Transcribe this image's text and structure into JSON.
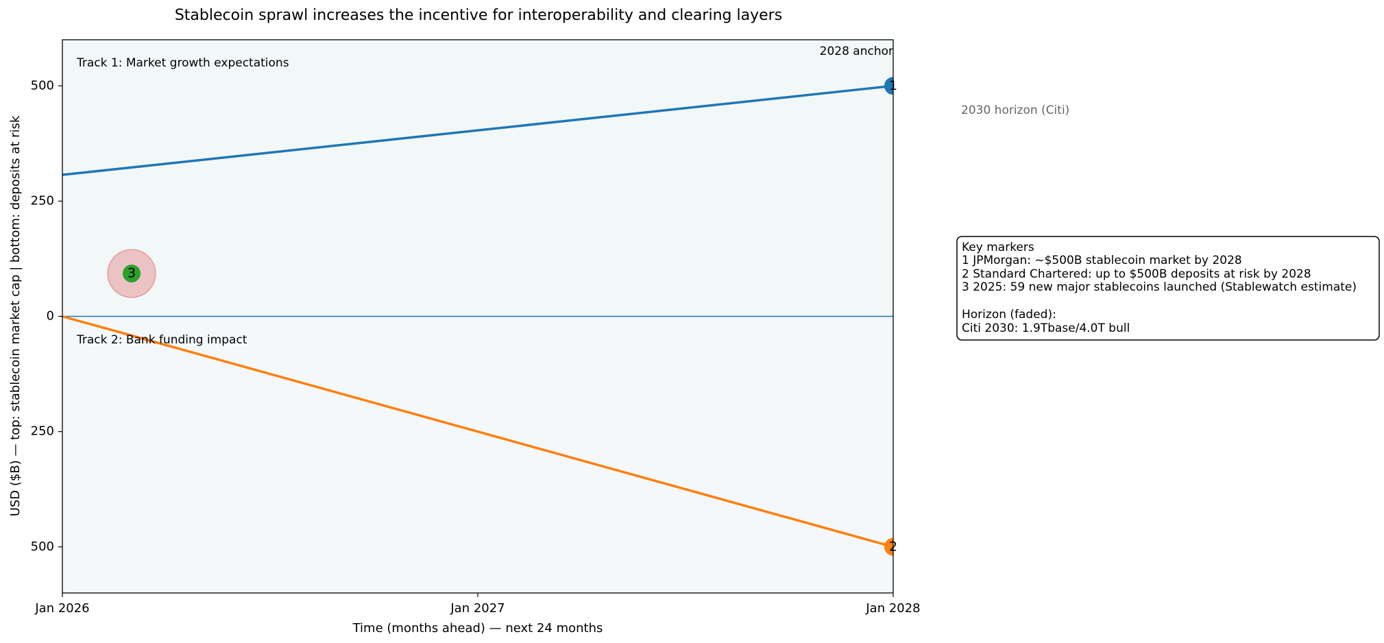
{
  "chart_data": {
    "type": "line",
    "title": "Stablecoin sprawl increases the incentive for interoperability and clearing layers",
    "x_label": "Time (months ahead) — next 24 months",
    "y_label": "USD ($B) — top: stablecoin market cap | bottom: deposits at risk",
    "xlim": [
      0,
      24
    ],
    "xticks": [
      {
        "value": 0,
        "label": "Jan 2026"
      },
      {
        "value": 12,
        "label": "Jan 2027"
      },
      {
        "value": 24,
        "label": "Jan 2028"
      }
    ],
    "ylim": [
      -600,
      600
    ],
    "yticks": [
      {
        "value": -500,
        "label": "500"
      },
      {
        "value": -250,
        "label": "250"
      },
      0,
      250,
      500
    ],
    "hline": 0,
    "series": [
      {
        "color": "#1f77b4",
        "x": [
          0,
          24
        ],
        "values": [
          307,
          500
        ]
      },
      {
        "color": "#ff7f0e",
        "x": [
          0,
          24
        ],
        "values": [
          0,
          -500
        ]
      }
    ],
    "markers": [
      {
        "label": "1",
        "x": 24,
        "y": 500,
        "color": "#1f77b4"
      },
      {
        "label": "2",
        "x": 24,
        "y": -500,
        "color": "#ff7f0e"
      },
      {
        "label": "3",
        "x": 2,
        "y": 93,
        "color": "#2ca02c",
        "halo": true
      }
    ],
    "annotations": {
      "track1": "Track 1: Market growth expectations",
      "track2": "Track 2: Bank funding impact",
      "anchor": "2028 anchor",
      "horizon": "2030 horizon (Citi)"
    },
    "legend_box": {
      "title": "Key markers",
      "lines": [
        "1  JPMorgan: ~$500B stablecoin market by 2028",
        "2  Standard Chartered: up to $500B deposits at risk by 2028",
        "3  2025: 59 new major stablecoins launched (Stablewatch estimate)"
      ],
      "horizon_title": "Horizon (faded):",
      "horizon_line": "Citi 2030: 1.9Tbase/4.0T bull"
    }
  }
}
